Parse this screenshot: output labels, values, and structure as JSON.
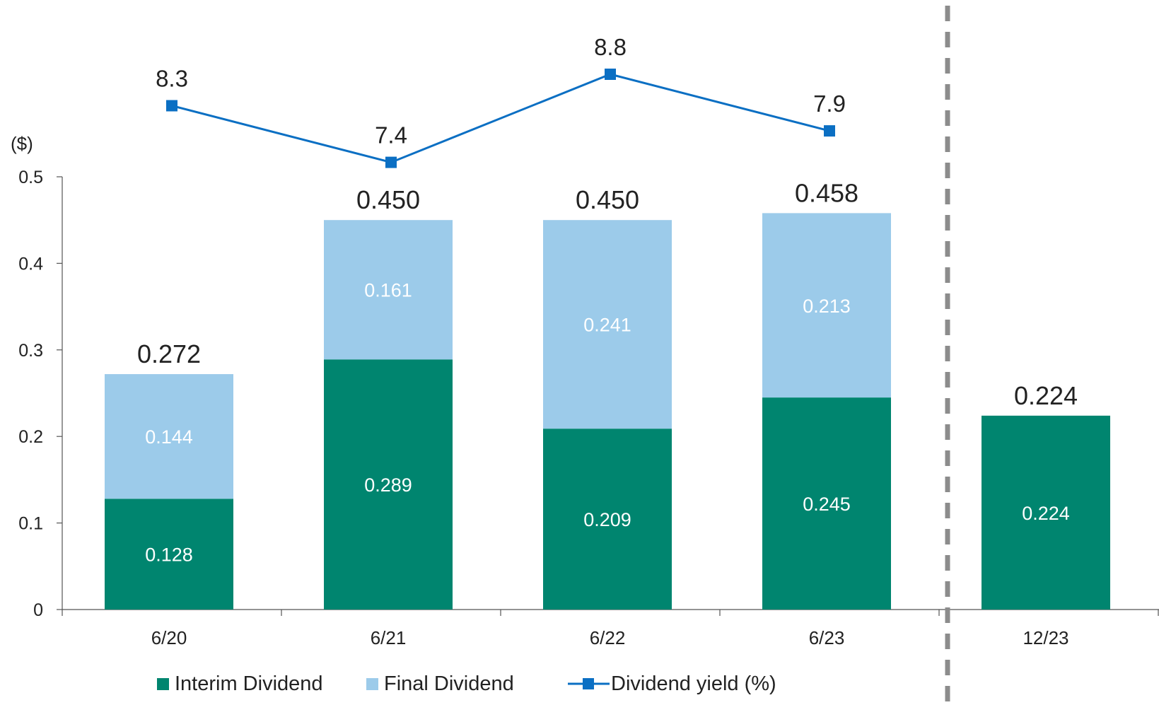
{
  "chart_data": {
    "type": "bar",
    "stacked": true,
    "unit_label": "($)",
    "categories": [
      "6/20",
      "6/21",
      "6/22",
      "6/23",
      "12/23"
    ],
    "ylim": [
      0,
      0.5
    ],
    "yticks": [
      "0",
      "0.1",
      "0.2",
      "0.3",
      "0.4",
      "0.5"
    ],
    "ytick_values": [
      0,
      0.1,
      0.2,
      0.3,
      0.4,
      0.5
    ],
    "grid": false,
    "divider_after_category": "6/23",
    "series": [
      {
        "name": "Interim Dividend",
        "kind": "bar",
        "color": "#00856f",
        "values": [
          0.128,
          0.289,
          0.209,
          0.245,
          0.224
        ],
        "labels": [
          "0.128",
          "0.289",
          "0.209",
          "0.245",
          "0.224"
        ]
      },
      {
        "name": "Final Dividend",
        "kind": "bar",
        "color": "#9ccbea",
        "values": [
          0.144,
          0.161,
          0.241,
          0.213,
          null
        ],
        "labels": [
          "0.144",
          "0.161",
          "0.241",
          "0.213",
          null
        ]
      },
      {
        "name": "Dividend yield (%)",
        "kind": "line",
        "color": "#0b6fc3",
        "values": [
          8.3,
          7.4,
          8.8,
          7.9,
          null
        ],
        "labels": [
          "8.3",
          "7.4",
          "8.8",
          "7.9",
          null
        ]
      }
    ],
    "totals": [
      "0.272",
      "0.450",
      "0.450",
      "0.458",
      "0.224"
    ],
    "legend": {
      "position": "bottom",
      "items": [
        "Interim Dividend",
        "Final Dividend",
        "Dividend yield (%)"
      ]
    }
  }
}
